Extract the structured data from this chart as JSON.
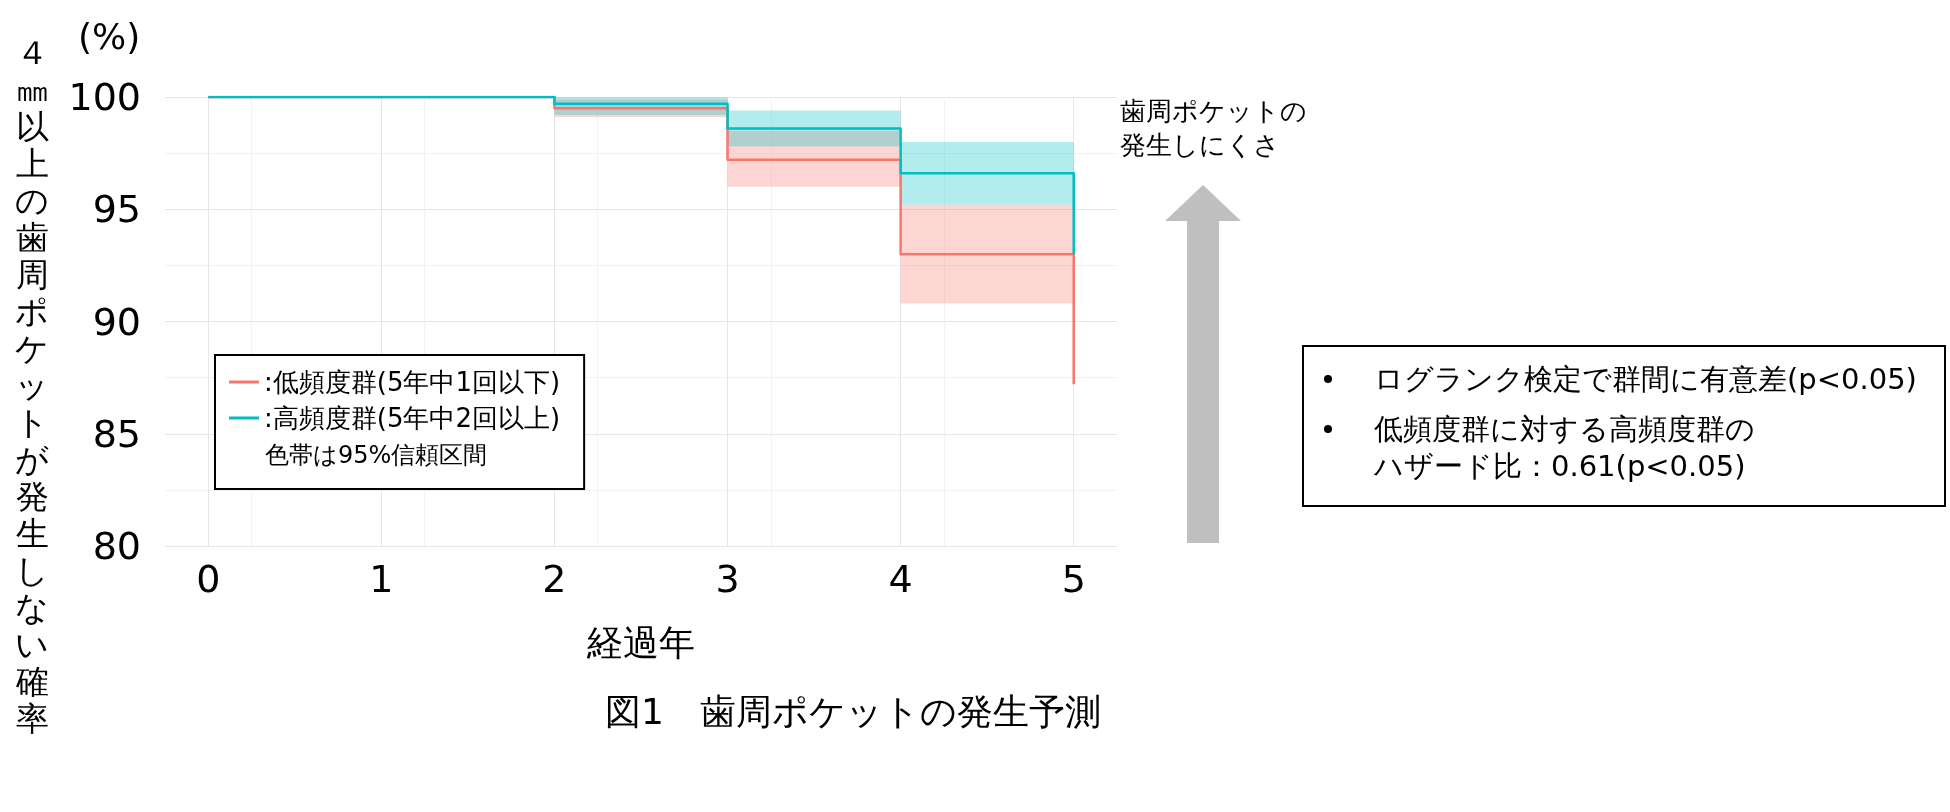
{
  "chart_data": {
    "type": "step",
    "title": "図1　歯周ポケットの発生予測",
    "xlabel": "経過年",
    "ylabel": "４㎜以上の歯周ポケットが発生しない確率",
    "annotations": [
      "(%)",
      "色帯は95%信頼区間",
      "歯周ポケットの発生しにくさ",
      "ログランク検定で群間に有意差(p<0.05)",
      "低頻度群に対する高頻度群のハザード比：0.61(p<0.05)"
    ],
    "series": [
      {
        "name": ":低頻度群(5年中1回以下)",
        "color": "#f8766d",
        "x": [
          0,
          2,
          3,
          4,
          5,
          5
        ],
        "values": [
          100,
          99.5,
          97.2,
          93.0,
          93.0,
          87.2
        ],
        "lower": [
          100,
          99.1,
          96.0,
          90.8,
          90.8,
          null
        ],
        "upper": [
          100,
          99.9,
          98.5,
          95.2,
          95.2,
          null
        ]
      },
      {
        "name": ":高頻度群(5年中2回以上)",
        "color": "#00bfc4",
        "x": [
          0,
          2,
          3,
          4,
          5,
          5
        ],
        "values": [
          100,
          99.7,
          98.6,
          96.6,
          96.6,
          93.0
        ],
        "lower": [
          100,
          99.2,
          97.8,
          95.2,
          95.2,
          null
        ],
        "upper": [
          100,
          100,
          99.4,
          98.0,
          98.0,
          null
        ]
      }
    ],
    "xlim": [
      -0.25,
      5.25
    ],
    "xticks": [
      0,
      1,
      2,
      3,
      4,
      5
    ],
    "ylim": [
      80,
      100
    ],
    "yticks": [
      80,
      85,
      90,
      95,
      100
    ],
    "grid": true,
    "legend": "bottom left"
  }
}
